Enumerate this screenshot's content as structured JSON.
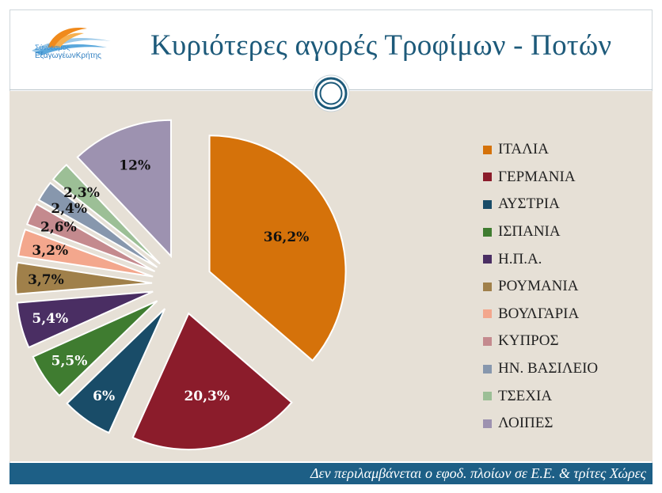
{
  "header": {
    "title": "Κυριότερες αγορές Τροφίμων - Ποτών",
    "logo_line1": "Σύνδεσμος",
    "logo_line2": "ΕξαγωγέωνΚρήτης"
  },
  "footer": {
    "note": "Δεν περιλαμβάνεται ο εφοδ. πλοίων σε Ε.Ε. & τρίτες Χώρες"
  },
  "colors": {
    "title": "#1d5a7a",
    "footer_bg": "#1d5f86",
    "content_bg": "#e6e0d6"
  },
  "chart_data": {
    "type": "pie",
    "title": "",
    "legend_position": "right",
    "exploded": true,
    "slices": [
      {
        "name": "ΙΤΑΛΙΑ",
        "value": 36.2,
        "label": "36,2%",
        "color": "#d5720a",
        "label_color": "#111111"
      },
      {
        "name": "ΓΕΡΜΑΝΙΑ",
        "value": 20.3,
        "label": "20,3%",
        "color": "#8b1c2b",
        "label_color": "#ffffff"
      },
      {
        "name": "ΑΥΣΤΡΙΑ",
        "value": 6,
        "label": "6%",
        "color": "#194c68",
        "label_color": "#ffffff"
      },
      {
        "name": "ΙΣΠΑΝΙΑ",
        "value": 5.5,
        "label": "5,5%",
        "color": "#3f7c30",
        "label_color": "#ffffff"
      },
      {
        "name": "Η.Π.Α.",
        "value": 5.4,
        "label": "5,4%",
        "color": "#4a2e63",
        "label_color": "#ffffff"
      },
      {
        "name": "ΡΟΥΜΑΝΙΑ",
        "value": 3.7,
        "label": "3,7%",
        "color": "#a0804a",
        "label_color": "#111111"
      },
      {
        "name": "ΒΟΥΛΓΑΡΙΑ",
        "value": 3.2,
        "label": "3,2%",
        "color": "#f3a78d",
        "label_color": "#111111"
      },
      {
        "name": "ΚΥΠΡΟΣ",
        "value": 2.6,
        "label": "2,6%",
        "color": "#c48a8e",
        "label_color": "#111111"
      },
      {
        "name": "ΗΝ. ΒΑΣΙΛΕΙΟ",
        "value": 2.4,
        "label": "2,4%",
        "color": "#8797ad",
        "label_color": "#111111"
      },
      {
        "name": "ΤΣΕΧΙΑ",
        "value": 2.3,
        "label": "2,3%",
        "color": "#9cbf96",
        "label_color": "#111111"
      },
      {
        "name": "ΛΟΙΠΕΣ",
        "value": 12,
        "label": "12%",
        "color": "#9d92b0",
        "label_color": "#111111"
      }
    ]
  }
}
